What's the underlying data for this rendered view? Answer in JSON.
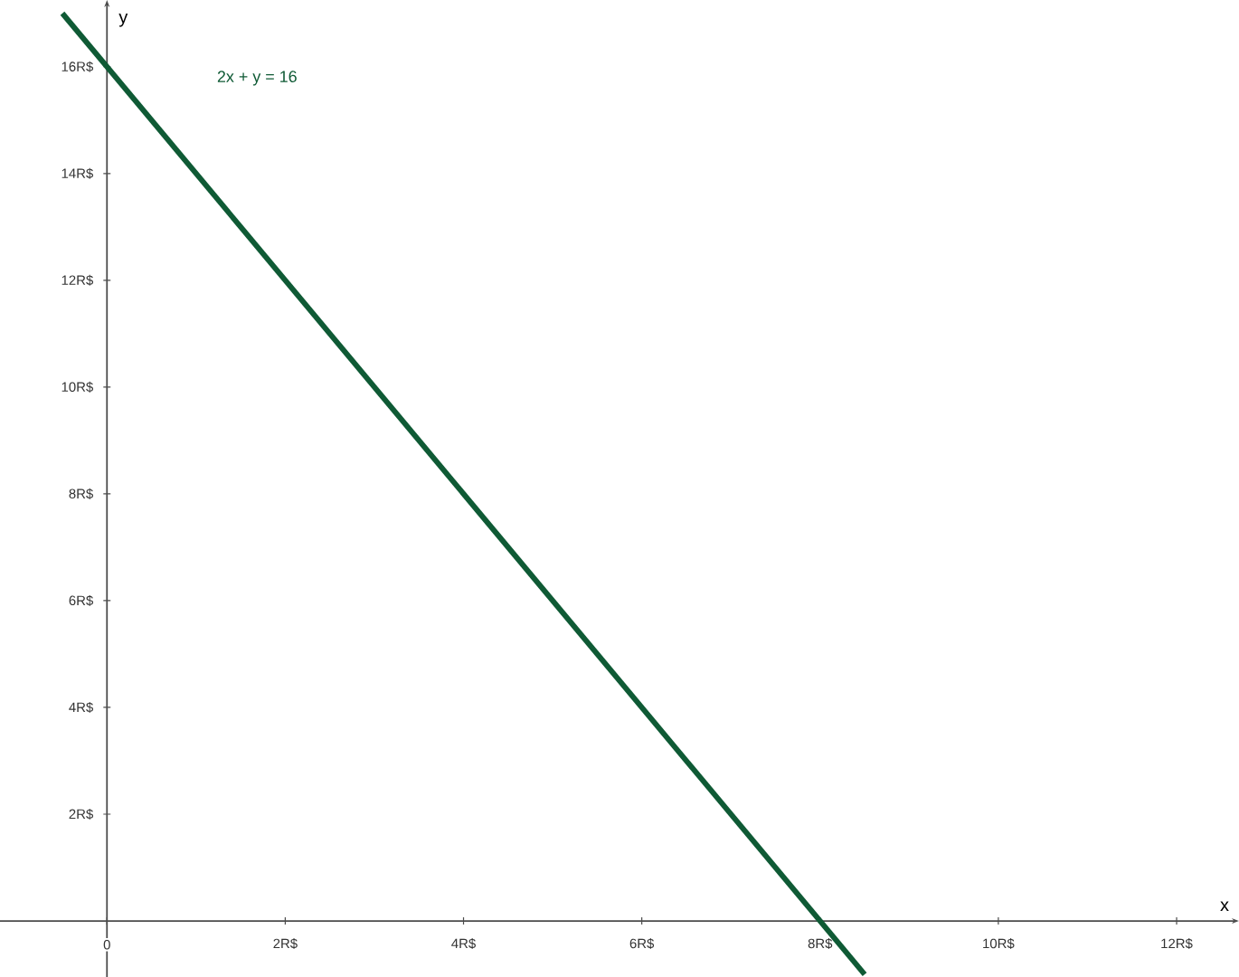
{
  "chart_data": {
    "type": "line",
    "xlabel": "x",
    "ylabel": "y",
    "xlim": [
      -1.2,
      12.7
    ],
    "ylim": [
      -1.05,
      17.25
    ],
    "xticks": [
      {
        "value": 0,
        "label": "0"
      },
      {
        "value": 2,
        "label": "2R$"
      },
      {
        "value": 4,
        "label": "4R$"
      },
      {
        "value": 6,
        "label": "6R$"
      },
      {
        "value": 8,
        "label": "8R$"
      },
      {
        "value": 10,
        "label": "10R$"
      },
      {
        "value": 12,
        "label": "12R$"
      }
    ],
    "yticks": [
      {
        "value": 2,
        "label": "2R$"
      },
      {
        "value": 4,
        "label": "4R$"
      },
      {
        "value": 6,
        "label": "6R$"
      },
      {
        "value": 8,
        "label": "8R$"
      },
      {
        "value": 10,
        "label": "10R$"
      },
      {
        "value": 12,
        "label": "12R$"
      },
      {
        "value": 14,
        "label": "14R$"
      },
      {
        "value": 16,
        "label": "16R$"
      }
    ],
    "grid": false,
    "marker": "none",
    "line_style": "solid",
    "series": [
      {
        "name": "2x + y = 16",
        "color": "#0f5a35",
        "x": [
          -0.5,
          8.5
        ],
        "values": [
          17,
          -1
        ]
      }
    ]
  }
}
